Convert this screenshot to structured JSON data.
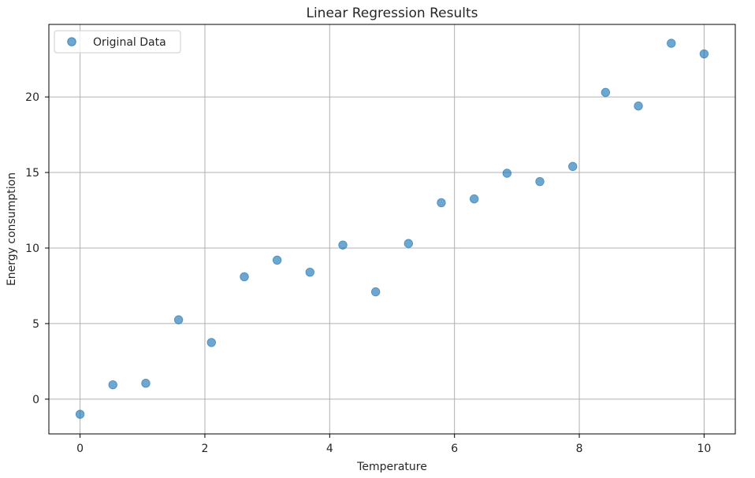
{
  "chart_data": {
    "type": "scatter",
    "title": "Linear Regression Results",
    "xlabel": "Temperature",
    "ylabel": "Energy consumption",
    "xlim": [
      -0.5,
      10.5
    ],
    "ylim": [
      -2.3,
      24.8
    ],
    "xticks": [
      0,
      2,
      4,
      6,
      8,
      10
    ],
    "yticks": [
      0,
      5,
      10,
      15,
      20
    ],
    "grid": true,
    "legend_position": "top-left",
    "series": [
      {
        "name": "Original Data",
        "color": "#1f77b4",
        "x": [
          0,
          0.526,
          1.053,
          1.579,
          2.105,
          2.632,
          3.158,
          3.684,
          4.211,
          4.737,
          5.263,
          5.789,
          6.316,
          6.842,
          7.368,
          7.895,
          8.421,
          8.947,
          9.474,
          10
        ],
        "y": [
          -1.0,
          0.95,
          1.05,
          5.25,
          3.75,
          8.1,
          9.2,
          8.4,
          10.2,
          7.1,
          10.3,
          13.0,
          13.25,
          14.95,
          14.4,
          15.4,
          20.3,
          19.4,
          23.55,
          22.85
        ]
      }
    ]
  }
}
